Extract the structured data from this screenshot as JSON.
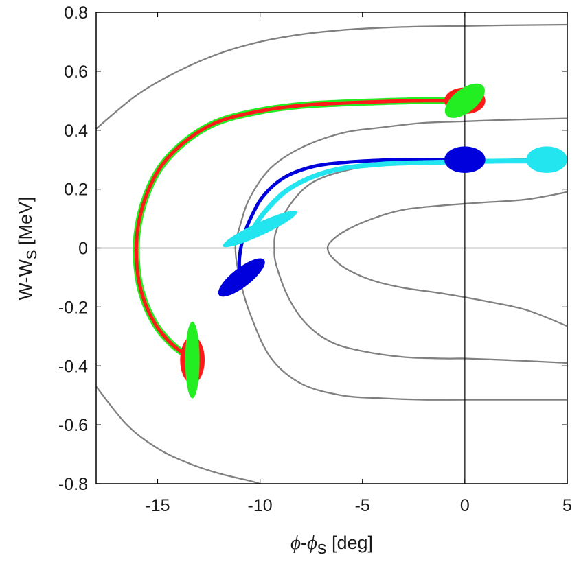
{
  "chart_data": {
    "type": "line",
    "title": "",
    "xlabel": {
      "symbol": "ϕ",
      "middle": "-",
      "symbol2": "ϕ",
      "sub": "s",
      "unit": " [deg]"
    },
    "ylabel": {
      "main": "W-W",
      "sub": "s",
      "unit": " [MeV]"
    },
    "xlim": [
      -18,
      5
    ],
    "ylim": [
      -0.8,
      0.8
    ],
    "xticks": [
      -15,
      -10,
      -5,
      0,
      5
    ],
    "yticks": [
      -0.8,
      -0.6,
      -0.4,
      -0.2,
      0,
      0.2,
      0.4,
      0.6,
      0.8
    ],
    "xtick_labels": [
      "-15",
      "-10",
      "-5",
      "0",
      "5"
    ],
    "ytick_labels": [
      "-0.8",
      "-0.6",
      "-0.4",
      "-0.2",
      "0",
      "0.2",
      "0.4",
      "0.6",
      "0.8"
    ],
    "colors": {
      "contour": "#808080",
      "red": "#ff1a1a",
      "green": "#22ee22",
      "blue": "#0000dd",
      "cyan": "#22e5f0",
      "axis": "#000000"
    },
    "contours": [
      {
        "name": "contour-top-outer",
        "x": [
          -18,
          -16,
          -14,
          -12,
          -10,
          -8,
          -6,
          -4,
          -2,
          0,
          2,
          5
        ],
        "y": [
          0.405,
          0.52,
          0.6,
          0.66,
          0.7,
          0.725,
          0.74,
          0.748,
          0.752,
          0.754,
          0.756,
          0.758
        ]
      },
      {
        "name": "contour-bottom-outer",
        "x": [
          -18,
          -16.5,
          -15,
          -13.5,
          -12,
          -10.5,
          -10
        ],
        "y": [
          -0.47,
          -0.6,
          -0.68,
          -0.73,
          -0.765,
          -0.79,
          -0.8
        ]
      },
      {
        "name": "contour-middle",
        "x": [
          5,
          2,
          0,
          -2,
          -4,
          -6,
          -8,
          -9.5,
          -10.5,
          -11,
          -11.2,
          -11,
          -10.5,
          -9.5,
          -8,
          -6,
          -4,
          -2,
          0,
          2,
          5
        ],
        "y": [
          0.44,
          0.435,
          0.43,
          0.425,
          0.41,
          0.39,
          0.34,
          0.27,
          0.17,
          0.07,
          0,
          -0.1,
          -0.22,
          -0.37,
          -0.46,
          -0.5,
          -0.51,
          -0.515,
          -0.515,
          -0.515,
          -0.515
        ]
      },
      {
        "name": "contour-inner",
        "x": [
          5,
          2,
          0,
          -2,
          -4,
          -6,
          -7.5,
          -8.5,
          -9.2,
          -9.3,
          -9.2,
          -8.6,
          -7.7,
          -6.5,
          -5,
          -3,
          -1,
          0,
          2,
          5
        ],
        "y": [
          0.31,
          0.3,
          0.3,
          0.295,
          0.285,
          0.26,
          0.22,
          0.15,
          0.06,
          0,
          -0.06,
          -0.17,
          -0.26,
          -0.32,
          -0.35,
          -0.37,
          -0.375,
          -0.375,
          -0.38,
          -0.39
        ]
      },
      {
        "name": "contour-innermost",
        "x": [
          5,
          3,
          1,
          -1,
          -3,
          -4.5,
          -5.8,
          -6.5,
          -6.7,
          -6.5,
          -5.8,
          -4.5,
          -3,
          -1,
          1,
          3,
          5
        ],
        "y": [
          0.19,
          0.165,
          0.155,
          0.145,
          0.13,
          0.1,
          0.06,
          0.025,
          0,
          -0.03,
          -0.07,
          -0.11,
          -0.135,
          -0.155,
          -0.18,
          -0.21,
          -0.265
        ]
      }
    ],
    "series": [
      {
        "name": "green-trajectory",
        "color": "green",
        "width": 10,
        "x": [
          0,
          -2,
          -4,
          -6,
          -8,
          -10,
          -12,
          -13.5,
          -14.8,
          -15.6,
          -16.0,
          -16.0,
          -15.7,
          -15.1,
          -14.4,
          -13.7,
          -13.3
        ],
        "y": [
          0.5,
          0.5,
          0.497,
          0.492,
          0.484,
          0.465,
          0.43,
          0.37,
          0.28,
          0.17,
          0.05,
          -0.07,
          -0.17,
          -0.26,
          -0.32,
          -0.36,
          -0.38
        ]
      },
      {
        "name": "red-trajectory",
        "color": "red",
        "width": 5,
        "x": [
          0,
          -2,
          -4,
          -6,
          -8,
          -10,
          -12,
          -13.5,
          -14.8,
          -15.6,
          -16.0,
          -16.0,
          -15.7,
          -15.1,
          -14.4,
          -13.7,
          -13.3
        ],
        "y": [
          0.5,
          0.5,
          0.497,
          0.492,
          0.484,
          0.465,
          0.43,
          0.37,
          0.28,
          0.17,
          0.05,
          -0.07,
          -0.17,
          -0.26,
          -0.32,
          -0.36,
          -0.38
        ]
      },
      {
        "name": "blue-trajectory",
        "color": "blue",
        "width": 5,
        "x": [
          0,
          -2,
          -4,
          -6,
          -7.5,
          -8.8,
          -9.8,
          -10.4,
          -10.8,
          -11.0,
          -11.0
        ],
        "y": [
          0.3,
          0.3,
          0.298,
          0.29,
          0.275,
          0.24,
          0.18,
          0.11,
          0.04,
          -0.03,
          -0.09
        ]
      },
      {
        "name": "cyan-trajectory",
        "color": "cyan",
        "width": 7,
        "x": [
          4,
          2,
          0,
          -2,
          -4,
          -6,
          -7.5,
          -8.8,
          -9.8,
          -10.3
        ],
        "y": [
          0.295,
          0.295,
          0.293,
          0.29,
          0.285,
          0.27,
          0.24,
          0.19,
          0.12,
          0.07
        ]
      }
    ],
    "ellipses": [
      {
        "name": "red-ellipse-end",
        "color": "red",
        "cx": 0,
        "cy": 0.5,
        "rx": 1.0,
        "ry": 0.045,
        "angle": 0
      },
      {
        "name": "green-ellipse-end",
        "color": "green",
        "cx": 0,
        "cy": 0.5,
        "rx": 1.15,
        "ry": 0.04,
        "angle": -38
      },
      {
        "name": "red-ellipse-start",
        "color": "red",
        "cx": -13.3,
        "cy": -0.38,
        "rx": 0.6,
        "ry": 0.08,
        "angle": 0
      },
      {
        "name": "green-ellipse-start",
        "color": "green",
        "cx": -13.3,
        "cy": -0.38,
        "rx": 0.35,
        "ry": 0.13,
        "angle": 0
      },
      {
        "name": "blue-ellipse-end",
        "color": "blue",
        "cx": 0,
        "cy": 0.3,
        "rx": 1.0,
        "ry": 0.045,
        "angle": 0
      },
      {
        "name": "cyan-ellipse-end",
        "color": "cyan",
        "cx": 4.0,
        "cy": 0.3,
        "rx": 1.0,
        "ry": 0.045,
        "angle": 0
      },
      {
        "name": "blue-ellipse-start",
        "color": "blue",
        "cx": -10.9,
        "cy": -0.1,
        "rx": 1.4,
        "ry": 0.032,
        "angle": -38
      },
      {
        "name": "cyan-ellipse-start",
        "color": "cyan",
        "cx": -10.0,
        "cy": 0.065,
        "rx": 2.0,
        "ry": 0.022,
        "angle": -25
      }
    ]
  }
}
